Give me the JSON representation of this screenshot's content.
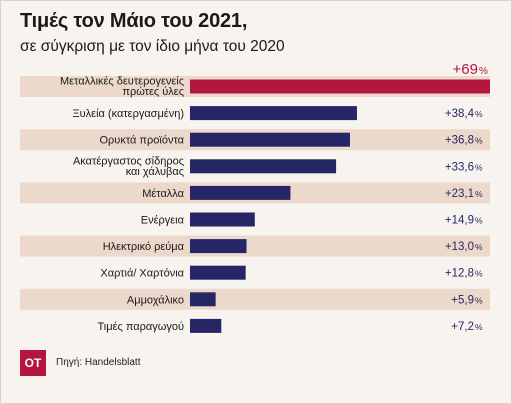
{
  "header": {
    "title": "Τιμές τον Μάιο του 2021,",
    "subtitle": "σε σύγκριση με τον ίδιο μήνα του 2020"
  },
  "footer": {
    "logo_text": "OT",
    "source": "Πηγή: Handelsblatt"
  },
  "colors": {
    "highlight_bar": "#b5163f",
    "bar": "#262666",
    "row_band": "#ecd9cb",
    "highlight_value": "#b5163f",
    "value": "#262666"
  },
  "chart_data": {
    "type": "bar",
    "orientation": "horizontal",
    "categories": [
      [
        "Μεταλλικές δευτερογενείς",
        "πρώτες ύλες"
      ],
      [
        "Ξυλεία (κατεργασμένη)"
      ],
      [
        "Ορυκτά προϊόντα"
      ],
      [
        "Ακατέργαστος σίδηρος",
        "και χάλυβας"
      ],
      [
        "Μέταλλα"
      ],
      [
        "Ενέργεια"
      ],
      [
        "Ηλεκτρικό ρεύμα"
      ],
      [
        "Χαρτιά/ Χαρτόνια"
      ],
      [
        "Αμμοχάλικο"
      ],
      [
        "Τιμές παραγωγού"
      ]
    ],
    "values": [
      69,
      38.4,
      36.8,
      33.6,
      23.1,
      14.9,
      13.0,
      12.8,
      5.9,
      7.2
    ],
    "value_labels": [
      "+69",
      "+38,4",
      "+36,8",
      "+33,6",
      "+23,1",
      "+14,9",
      "+13,0",
      "+12,8",
      "+5,9",
      "+7,2"
    ],
    "unit": "%",
    "highlight_index": 0
  }
}
